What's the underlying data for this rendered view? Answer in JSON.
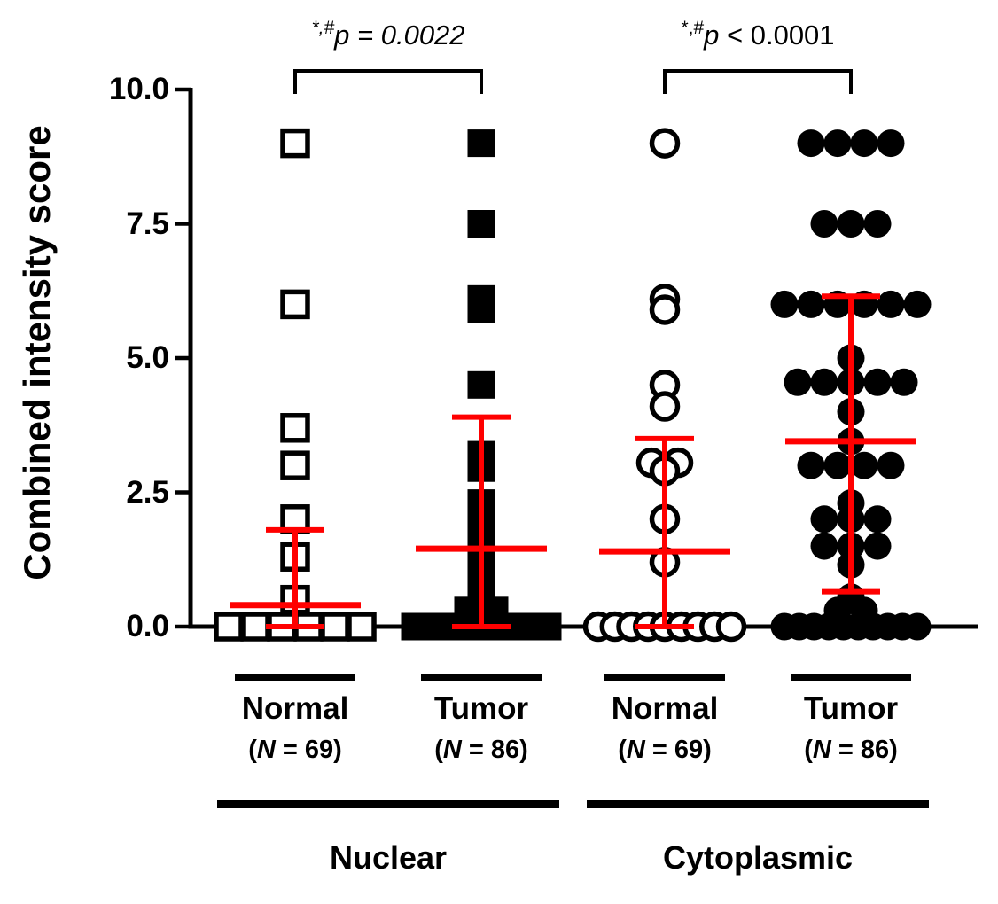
{
  "chart_data": {
    "type": "scatter",
    "title": "",
    "xlabel": "",
    "ylabel": "Combined intensity score",
    "ylim": [
      0,
      10
    ],
    "grid": false,
    "error_bar_type": "mean with SD whiskers (red)",
    "yticks": {
      "values": [
        0,
        2.5,
        5,
        7.5,
        10
      ],
      "labels": [
        "0.0",
        "2.5",
        "5.0",
        "7.5",
        "10.0"
      ]
    },
    "colors": {
      "marker": "#000000",
      "error_bar": "#ff0000",
      "axis": "#000000"
    },
    "super_groups": [
      {
        "label": "Nuclear",
        "significance": {
          "sup": "*,#",
          "text": "p = 0.0022",
          "italic_all": true
        }
      },
      {
        "label": "Cytoplasmic",
        "significance": {
          "sup": "*,#",
          "text": "p < 0.0001",
          "italic_all": false
        }
      }
    ],
    "groups": [
      {
        "id": "nuclear-normal",
        "label": "Normal",
        "n_label": "(N = 69)",
        "marker": "open-square",
        "points": [
          [
            9.0,
            1
          ],
          [
            6.0,
            1
          ],
          [
            3.7,
            1
          ],
          [
            3.0,
            1
          ],
          [
            2.0,
            1
          ],
          [
            1.3,
            1
          ],
          [
            0.5,
            1
          ],
          [
            0.0,
            6
          ]
        ],
        "mean": 0.4,
        "upper": 1.8,
        "lower": 0.0
      },
      {
        "id": "nuclear-tumor",
        "label": "Tumor",
        "n_label": "(N = 86)",
        "marker": "filled-square",
        "points": [
          [
            9.0,
            1
          ],
          [
            7.5,
            1
          ],
          [
            6.1,
            1
          ],
          [
            5.9,
            1
          ],
          [
            4.5,
            1
          ],
          [
            3.2,
            1
          ],
          [
            2.95,
            1
          ],
          [
            2.3,
            1
          ],
          [
            2.0,
            1
          ],
          [
            1.5,
            1
          ],
          [
            1.2,
            1
          ],
          [
            0.9,
            1
          ],
          [
            0.6,
            1
          ],
          [
            0.3,
            2
          ],
          [
            0.0,
            8
          ]
        ],
        "mean": 1.45,
        "upper": 3.9,
        "lower": 0.0
      },
      {
        "id": "cytoplasmic-normal",
        "label": "Normal",
        "n_label": "(N = 69)",
        "marker": "open-circle",
        "points": [
          [
            9.0,
            1
          ],
          [
            6.1,
            1
          ],
          [
            5.9,
            1
          ],
          [
            4.5,
            1
          ],
          [
            4.1,
            1
          ],
          [
            3.05,
            2
          ],
          [
            2.9,
            1
          ],
          [
            2.0,
            1
          ],
          [
            1.2,
            1
          ],
          [
            0.0,
            9
          ]
        ],
        "mean": 1.4,
        "upper": 3.5,
        "lower": 0.0
      },
      {
        "id": "cytoplasmic-tumor",
        "label": "Tumor",
        "n_label": "(N = 86)",
        "marker": "filled-circle",
        "points": [
          [
            9.0,
            4
          ],
          [
            7.5,
            3
          ],
          [
            6.0,
            6
          ],
          [
            5.0,
            1
          ],
          [
            4.55,
            5
          ],
          [
            4.0,
            1
          ],
          [
            3.45,
            1
          ],
          [
            3.0,
            4
          ],
          [
            2.3,
            1
          ],
          [
            2.0,
            3
          ],
          [
            1.5,
            3
          ],
          [
            1.15,
            1
          ],
          [
            0.55,
            1
          ],
          [
            0.3,
            2
          ],
          [
            0.0,
            10
          ]
        ],
        "mean": 3.45,
        "upper": 6.15,
        "lower": 0.65
      }
    ]
  }
}
